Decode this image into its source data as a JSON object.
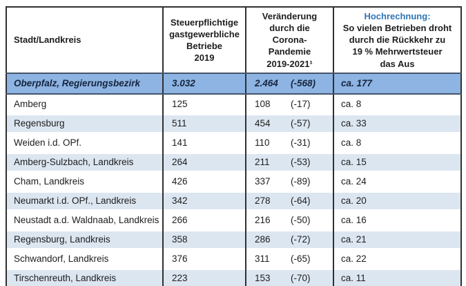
{
  "chart_data": {
    "type": "table",
    "description": "Statistics table of taxable hospitality businesses in the Oberpfalz region and projected closures",
    "legend_position": "none",
    "colors": {
      "highlight_row_bg": "#8db4e2",
      "stripe_row_bg": "#dce6f1",
      "header_accent_text": "#2e74b5",
      "border": "#2f2f2f",
      "highlight_border": "#44546a",
      "text": "#1d1d1d"
    },
    "columns": [
      {
        "label": "Stadt/Landkreis"
      },
      {
        "label": "Steuerpflichtige\ngastgewerbliche\nBetriebe\n2019"
      },
      {
        "label": "Veränderung\ndurch die\nCorona-\nPandemie\n2019-2021¹"
      },
      {
        "accent_title": "Hochrechnung:",
        "label": "So vielen Betrieben droht\ndurch die Rückkehr zu\n19 % Mehrwertsteuer\ndas Aus"
      }
    ],
    "rows": [
      {
        "name": "Oberpfalz, Regierungsbezirk",
        "betriebe_2019": "3.032",
        "veraenderung": "2.464",
        "delta": "(-568)",
        "hochrechnung": "ca. 177",
        "highlight": true
      },
      {
        "name": "Amberg",
        "betriebe_2019": "125",
        "veraenderung": "108",
        "delta": "(-17)",
        "hochrechnung": "ca. 8"
      },
      {
        "name": "Regensburg",
        "betriebe_2019": "511",
        "veraenderung": "454",
        "delta": "(-57)",
        "hochrechnung": "ca. 33"
      },
      {
        "name": "Weiden i.d. OPf.",
        "betriebe_2019": "141",
        "veraenderung": "110",
        "delta": "(-31)",
        "hochrechnung": "ca. 8"
      },
      {
        "name": "Amberg-Sulzbach, Landkreis",
        "betriebe_2019": "264",
        "veraenderung": "211",
        "delta": "(-53)",
        "hochrechnung": "ca. 15"
      },
      {
        "name": "Cham, Landkreis",
        "betriebe_2019": "426",
        "veraenderung": "337",
        "delta": "(-89)",
        "hochrechnung": "ca. 24"
      },
      {
        "name": "Neumarkt i.d. OPf., Landkreis",
        "betriebe_2019": "342",
        "veraenderung": "278",
        "delta": "(-64)",
        "hochrechnung": "ca. 20"
      },
      {
        "name": "Neustadt a.d. Waldnaab, Landkreis",
        "betriebe_2019": "266",
        "veraenderung": "216",
        "delta": "(-50)",
        "hochrechnung": "ca. 16"
      },
      {
        "name": "Regensburg, Landkreis",
        "betriebe_2019": "358",
        "veraenderung": "286",
        "delta": "(-72)",
        "hochrechnung": "ca. 21"
      },
      {
        "name": "Schwandorf, Landkreis",
        "betriebe_2019": "376",
        "veraenderung": "311",
        "delta": "(-65)",
        "hochrechnung": "ca. 22"
      },
      {
        "name": "Tirschenreuth, Landkreis",
        "betriebe_2019": "223",
        "veraenderung": "153",
        "delta": "(-70)",
        "hochrechnung": "ca. 11"
      }
    ]
  }
}
